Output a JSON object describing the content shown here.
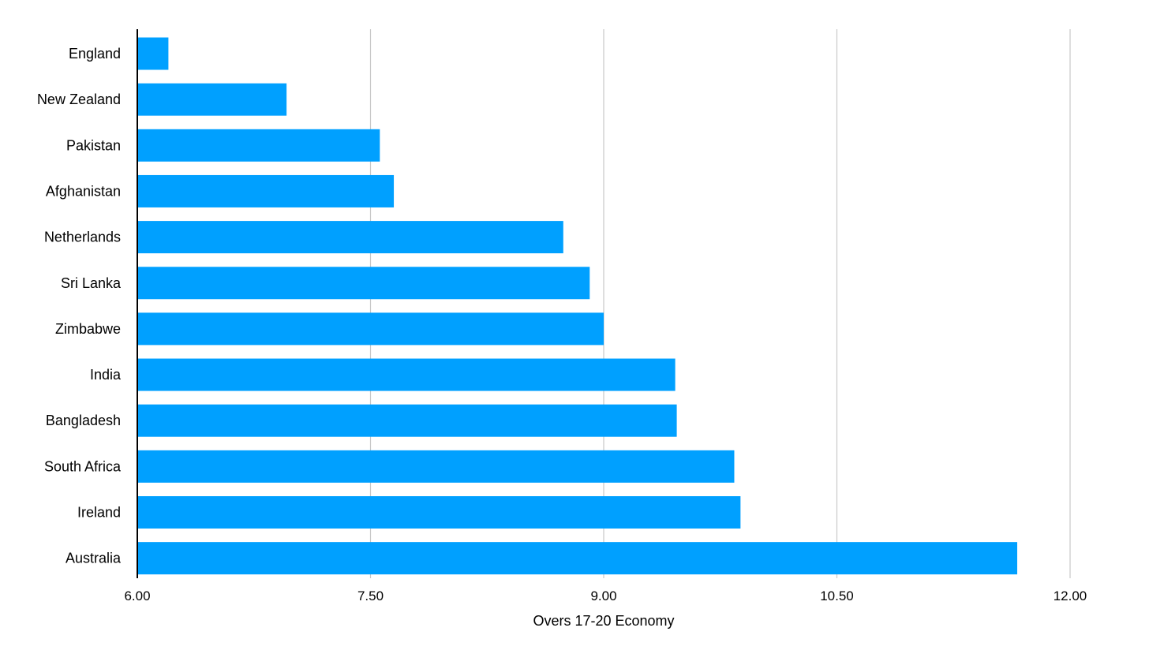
{
  "chart_data": {
    "type": "bar",
    "orientation": "horizontal",
    "categories": [
      "England",
      "New Zealand",
      "Pakistan",
      "Afghanistan",
      "Netherlands",
      "Sri Lanka",
      "Zimbabwe",
      "India",
      "Bangladesh",
      "South Africa",
      "Ireland",
      "Australia"
    ],
    "values": [
      6.2,
      6.96,
      7.56,
      7.65,
      8.74,
      8.91,
      9.0,
      9.46,
      9.47,
      9.84,
      9.88,
      11.66
    ],
    "xlabel": "Overs 17-20 Economy",
    "ylabel": "",
    "xlim": [
      6.0,
      12.0
    ],
    "xticks": [
      "6.00",
      "7.50",
      "9.00",
      "10.50",
      "12.00"
    ],
    "grid": "vertical",
    "bar_color": "#00a0ff",
    "grid_color": "#c8c8c8",
    "axis_color": "#000000"
  }
}
